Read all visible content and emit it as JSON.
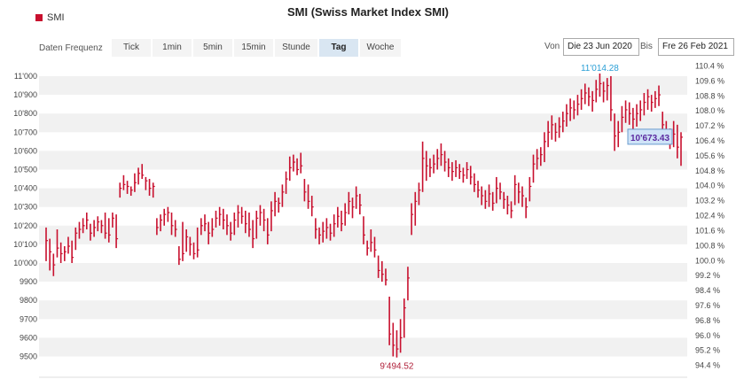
{
  "title": "SMI (Swiss Market Index SMI)",
  "legend": {
    "series_name": "SMI",
    "color": "#c8102e"
  },
  "toolbar": {
    "label": "Daten Frequenz",
    "buttons": [
      "Tick",
      "1min",
      "5min",
      "15min",
      "Stunde",
      "Tag",
      "Woche"
    ],
    "active": "Tag"
  },
  "range": {
    "from_label": "Von",
    "from_value": "Die 23 Jun 2020",
    "to_label": "Bis",
    "to_value": "Fre 26 Feb 2021"
  },
  "chart_data": {
    "type": "ohlc",
    "title": "SMI (Swiss Market Index SMI)",
    "grid": true,
    "x_range": [
      "Die 23 Jun 2020",
      "Fre 26 Feb 2021"
    ],
    "ylim": [
      9400,
      11050
    ],
    "y_ticks": [
      {
        "value": 11000,
        "label": "11'000"
      },
      {
        "value": 10900,
        "label": "10'900"
      },
      {
        "value": 10800,
        "label": "10'800"
      },
      {
        "value": 10700,
        "label": "10'700"
      },
      {
        "value": 10600,
        "label": "10'600"
      },
      {
        "value": 10500,
        "label": "10'500"
      },
      {
        "value": 10400,
        "label": "10'400"
      },
      {
        "value": 10300,
        "label": "10'300"
      },
      {
        "value": 10200,
        "label": "10'200"
      },
      {
        "value": 10100,
        "label": "10'100"
      },
      {
        "value": 10000,
        "label": "10'000"
      },
      {
        "value": 9900,
        "label": "9900"
      },
      {
        "value": 9800,
        "label": "9800"
      },
      {
        "value": 9700,
        "label": "9700"
      },
      {
        "value": 9600,
        "label": "9600"
      },
      {
        "value": 9500,
        "label": "9500"
      }
    ],
    "right_ticks": [
      "110.4 %",
      "109.6 %",
      "108.8 %",
      "108.0 %",
      "107.2 %",
      "106.4 %",
      "105.6 %",
      "104.8 %",
      "104.0 %",
      "103.2 %",
      "102.4 %",
      "101.6 %",
      "100.8 %",
      "100.0 %",
      "99.2 %",
      "98.4 %",
      "97.6 %",
      "96.8 %",
      "96.0 %",
      "95.2 %",
      "94.4 %"
    ],
    "right_ticks_pct": [
      110.4,
      109.6,
      108.8,
      108.0,
      107.2,
      106.4,
      105.6,
      104.8,
      104.0,
      103.2,
      102.4,
      101.6,
      100.8,
      100.0,
      99.2,
      98.4,
      97.6,
      96.8,
      96.0,
      95.2,
      94.4
    ],
    "base_value": 10013,
    "annotations": {
      "high": {
        "value": 11014.28,
        "label": "11'014.28"
      },
      "low": {
        "value": 9494.52,
        "label": "9'494.52"
      },
      "last": {
        "value": 10673.43,
        "label": "10'673.43"
      }
    },
    "bars": [
      {
        "h": 10190,
        "l": 10010,
        "c": 10120
      },
      {
        "h": 10130,
        "l": 9960,
        "c": 10060
      },
      {
        "h": 10050,
        "l": 9930,
        "c": 9990
      },
      {
        "h": 10180,
        "l": 10030,
        "c": 10080
      },
      {
        "h": 10110,
        "l": 10000,
        "c": 10050
      },
      {
        "h": 10090,
        "l": 10010,
        "c": 10060
      },
      {
        "h": 10140,
        "l": 10050,
        "c": 10090
      },
      {
        "h": 10120,
        "l": 10000,
        "c": 10030
      },
      {
        "h": 10190,
        "l": 10070,
        "c": 10160
      },
      {
        "h": 10220,
        "l": 10130,
        "c": 10180
      },
      {
        "h": 10240,
        "l": 10160,
        "c": 10200
      },
      {
        "h": 10270,
        "l": 10180,
        "c": 10230
      },
      {
        "h": 10210,
        "l": 10120,
        "c": 10160
      },
      {
        "h": 10230,
        "l": 10140,
        "c": 10190
      },
      {
        "h": 10250,
        "l": 10170,
        "c": 10220
      },
      {
        "h": 10230,
        "l": 10160,
        "c": 10200
      },
      {
        "h": 10270,
        "l": 10130,
        "c": 10160
      },
      {
        "h": 10240,
        "l": 10110,
        "c": 10150
      },
      {
        "h": 10270,
        "l": 10190,
        "c": 10240
      },
      {
        "h": 10260,
        "l": 10080,
        "c": 10130
      },
      {
        "h": 10430,
        "l": 10350,
        "c": 10400
      },
      {
        "h": 10470,
        "l": 10390,
        "c": 10420
      },
      {
        "h": 10440,
        "l": 10370,
        "c": 10410
      },
      {
        "h": 10410,
        "l": 10360,
        "c": 10390
      },
      {
        "h": 10480,
        "l": 10380,
        "c": 10430
      },
      {
        "h": 10510,
        "l": 10420,
        "c": 10480
      },
      {
        "h": 10530,
        "l": 10450,
        "c": 10470
      },
      {
        "h": 10460,
        "l": 10390,
        "c": 10440
      },
      {
        "h": 10450,
        "l": 10360,
        "c": 10400
      },
      {
        "h": 10430,
        "l": 10350,
        "c": 10410
      },
      {
        "h": 10240,
        "l": 10150,
        "c": 10190
      },
      {
        "h": 10260,
        "l": 10170,
        "c": 10230
      },
      {
        "h": 10290,
        "l": 10200,
        "c": 10260
      },
      {
        "h": 10300,
        "l": 10220,
        "c": 10270
      },
      {
        "h": 10270,
        "l": 10150,
        "c": 10200
      },
      {
        "h": 10230,
        "l": 10140,
        "c": 10180
      },
      {
        "h": 10090,
        "l": 9990,
        "c": 10020
      },
      {
        "h": 10220,
        "l": 10010,
        "c": 10050
      },
      {
        "h": 10180,
        "l": 10060,
        "c": 10140
      },
      {
        "h": 10140,
        "l": 10040,
        "c": 10100
      },
      {
        "h": 10110,
        "l": 10020,
        "c": 10050
      },
      {
        "h": 10190,
        "l": 10030,
        "c": 10070
      },
      {
        "h": 10240,
        "l": 10150,
        "c": 10200
      },
      {
        "h": 10260,
        "l": 10170,
        "c": 10210
      },
      {
        "h": 10220,
        "l": 10100,
        "c": 10160
      },
      {
        "h": 10240,
        "l": 10140,
        "c": 10180
      },
      {
        "h": 10280,
        "l": 10190,
        "c": 10240
      },
      {
        "h": 10300,
        "l": 10200,
        "c": 10260
      },
      {
        "h": 10290,
        "l": 10180,
        "c": 10230
      },
      {
        "h": 10260,
        "l": 10150,
        "c": 10200
      },
      {
        "h": 10220,
        "l": 10120,
        "c": 10160
      },
      {
        "h": 10270,
        "l": 10150,
        "c": 10230
      },
      {
        "h": 10310,
        "l": 10190,
        "c": 10270
      },
      {
        "h": 10300,
        "l": 10210,
        "c": 10250
      },
      {
        "h": 10280,
        "l": 10160,
        "c": 10210
      },
      {
        "h": 10270,
        "l": 10140,
        "c": 10180
      },
      {
        "h": 10230,
        "l": 10080,
        "c": 10130
      },
      {
        "h": 10280,
        "l": 10130,
        "c": 10240
      },
      {
        "h": 10310,
        "l": 10200,
        "c": 10270
      },
      {
        "h": 10290,
        "l": 10170,
        "c": 10230
      },
      {
        "h": 10240,
        "l": 10100,
        "c": 10150
      },
      {
        "h": 10330,
        "l": 10170,
        "c": 10280
      },
      {
        "h": 10380,
        "l": 10250,
        "c": 10330
      },
      {
        "h": 10350,
        "l": 10270,
        "c": 10320
      },
      {
        "h": 10420,
        "l": 10300,
        "c": 10380
      },
      {
        "h": 10490,
        "l": 10370,
        "c": 10450
      },
      {
        "h": 10570,
        "l": 10440,
        "c": 10510
      },
      {
        "h": 10580,
        "l": 10490,
        "c": 10540
      },
      {
        "h": 10560,
        "l": 10470,
        "c": 10500
      },
      {
        "h": 10590,
        "l": 10480,
        "c": 10520
      },
      {
        "h": 10450,
        "l": 10330,
        "c": 10380
      },
      {
        "h": 10420,
        "l": 10290,
        "c": 10330
      },
      {
        "h": 10360,
        "l": 10250,
        "c": 10300
      },
      {
        "h": 10240,
        "l": 10130,
        "c": 10180
      },
      {
        "h": 10190,
        "l": 10100,
        "c": 10150
      },
      {
        "h": 10220,
        "l": 10110,
        "c": 10170
      },
      {
        "h": 10240,
        "l": 10130,
        "c": 10190
      },
      {
        "h": 10210,
        "l": 10120,
        "c": 10160
      },
      {
        "h": 10260,
        "l": 10140,
        "c": 10210
      },
      {
        "h": 10300,
        "l": 10190,
        "c": 10250
      },
      {
        "h": 10280,
        "l": 10170,
        "c": 10210
      },
      {
        "h": 10320,
        "l": 10200,
        "c": 10270
      },
      {
        "h": 10380,
        "l": 10260,
        "c": 10330
      },
      {
        "h": 10350,
        "l": 10240,
        "c": 10300
      },
      {
        "h": 10410,
        "l": 10290,
        "c": 10360
      },
      {
        "h": 10370,
        "l": 10260,
        "c": 10310
      },
      {
        "h": 10250,
        "l": 10100,
        "c": 10150
      },
      {
        "h": 10120,
        "l": 10040,
        "c": 10080
      },
      {
        "h": 10180,
        "l": 10060,
        "c": 10110
      },
      {
        "h": 10140,
        "l": 10030,
        "c": 10070
      },
      {
        "h": 10040,
        "l": 9920,
        "c": 9960
      },
      {
        "h": 10010,
        "l": 9900,
        "c": 9940
      },
      {
        "h": 9970,
        "l": 9880,
        "c": 9910
      },
      {
        "h": 9820,
        "l": 9560,
        "c": 9620
      },
      {
        "h": 9680,
        "l": 9500,
        "c": 9560
      },
      {
        "h": 9640,
        "l": 9494.52,
        "c": 9540
      },
      {
        "h": 9700,
        "l": 9520,
        "c": 9600
      },
      {
        "h": 9810,
        "l": 9600,
        "c": 9760
      },
      {
        "h": 9980,
        "l": 9800,
        "c": 9920
      },
      {
        "h": 10320,
        "l": 10150,
        "c": 10260
      },
      {
        "h": 10380,
        "l": 10200,
        "c": 10330
      },
      {
        "h": 10430,
        "l": 10310,
        "c": 10390
      },
      {
        "h": 10650,
        "l": 10380,
        "c": 10560
      },
      {
        "h": 10600,
        "l": 10440,
        "c": 10520
      },
      {
        "h": 10560,
        "l": 10460,
        "c": 10510
      },
      {
        "h": 10580,
        "l": 10480,
        "c": 10530
      },
      {
        "h": 10610,
        "l": 10500,
        "c": 10560
      },
      {
        "h": 10640,
        "l": 10520,
        "c": 10580
      },
      {
        "h": 10600,
        "l": 10490,
        "c": 10540
      },
      {
        "h": 10560,
        "l": 10460,
        "c": 10510
      },
      {
        "h": 10540,
        "l": 10440,
        "c": 10490
      },
      {
        "h": 10550,
        "l": 10460,
        "c": 10510
      },
      {
        "h": 10530,
        "l": 10450,
        "c": 10490
      },
      {
        "h": 10510,
        "l": 10430,
        "c": 10470
      },
      {
        "h": 10540,
        "l": 10450,
        "c": 10500
      },
      {
        "h": 10520,
        "l": 10420,
        "c": 10460
      },
      {
        "h": 10480,
        "l": 10380,
        "c": 10420
      },
      {
        "h": 10440,
        "l": 10350,
        "c": 10390
      },
      {
        "h": 10410,
        "l": 10310,
        "c": 10360
      },
      {
        "h": 10390,
        "l": 10290,
        "c": 10330
      },
      {
        "h": 10420,
        "l": 10300,
        "c": 10370
      },
      {
        "h": 10380,
        "l": 10280,
        "c": 10320
      },
      {
        "h": 10460,
        "l": 10320,
        "c": 10400
      },
      {
        "h": 10430,
        "l": 10340,
        "c": 10380
      },
      {
        "h": 10380,
        "l": 10290,
        "c": 10340
      },
      {
        "h": 10360,
        "l": 10260,
        "c": 10310
      },
      {
        "h": 10330,
        "l": 10240,
        "c": 10280
      },
      {
        "h": 10470,
        "l": 10310,
        "c": 10420
      },
      {
        "h": 10430,
        "l": 10320,
        "c": 10380
      },
      {
        "h": 10410,
        "l": 10300,
        "c": 10360
      },
      {
        "h": 10350,
        "l": 10240,
        "c": 10300
      },
      {
        "h": 10460,
        "l": 10330,
        "c": 10410
      },
      {
        "h": 10580,
        "l": 10430,
        "c": 10530
      },
      {
        "h": 10610,
        "l": 10500,
        "c": 10560
      },
      {
        "h": 10620,
        "l": 10520,
        "c": 10580
      },
      {
        "h": 10700,
        "l": 10540,
        "c": 10650
      },
      {
        "h": 10760,
        "l": 10620,
        "c": 10700
      },
      {
        "h": 10790,
        "l": 10660,
        "c": 10740
      },
      {
        "h": 10750,
        "l": 10650,
        "c": 10700
      },
      {
        "h": 10780,
        "l": 10670,
        "c": 10730
      },
      {
        "h": 10810,
        "l": 10700,
        "c": 10760
      },
      {
        "h": 10850,
        "l": 10730,
        "c": 10800
      },
      {
        "h": 10880,
        "l": 10760,
        "c": 10830
      },
      {
        "h": 10870,
        "l": 10770,
        "c": 10820
      },
      {
        "h": 10900,
        "l": 10790,
        "c": 10850
      },
      {
        "h": 10930,
        "l": 10820,
        "c": 10880
      },
      {
        "h": 10960,
        "l": 10850,
        "c": 10910
      },
      {
        "h": 10940,
        "l": 10840,
        "c": 10890
      },
      {
        "h": 10920,
        "l": 10810,
        "c": 10870
      },
      {
        "h": 10980,
        "l": 10860,
        "c": 10930
      },
      {
        "h": 11014.28,
        "l": 10890,
        "c": 10960
      },
      {
        "h": 10970,
        "l": 10860,
        "c": 10920
      },
      {
        "h": 10990,
        "l": 10870,
        "c": 10950
      },
      {
        "h": 11000,
        "l": 10760,
        "c": 10820
      },
      {
        "h": 10800,
        "l": 10600,
        "c": 10680
      },
      {
        "h": 10760,
        "l": 10620,
        "c": 10700
      },
      {
        "h": 10840,
        "l": 10700,
        "c": 10780
      },
      {
        "h": 10870,
        "l": 10750,
        "c": 10820
      },
      {
        "h": 10860,
        "l": 10740,
        "c": 10800
      },
      {
        "h": 10830,
        "l": 10710,
        "c": 10770
      },
      {
        "h": 10850,
        "l": 10730,
        "c": 10800
      },
      {
        "h": 10870,
        "l": 10760,
        "c": 10820
      },
      {
        "h": 10910,
        "l": 10790,
        "c": 10860
      },
      {
        "h": 10930,
        "l": 10820,
        "c": 10890
      },
      {
        "h": 10900,
        "l": 10810,
        "c": 10860
      },
      {
        "h": 10920,
        "l": 10830,
        "c": 10880
      },
      {
        "h": 10950,
        "l": 10840,
        "c": 10900
      },
      {
        "h": 10810,
        "l": 10690,
        "c": 10740
      },
      {
        "h": 10760,
        "l": 10640,
        "c": 10700
      },
      {
        "h": 10720,
        "l": 10610,
        "c": 10660
      },
      {
        "h": 10760,
        "l": 10620,
        "c": 10690
      },
      {
        "h": 10740,
        "l": 10560,
        "c": 10620
      },
      {
        "h": 10700,
        "l": 10520,
        "c": 10673.43
      }
    ]
  }
}
